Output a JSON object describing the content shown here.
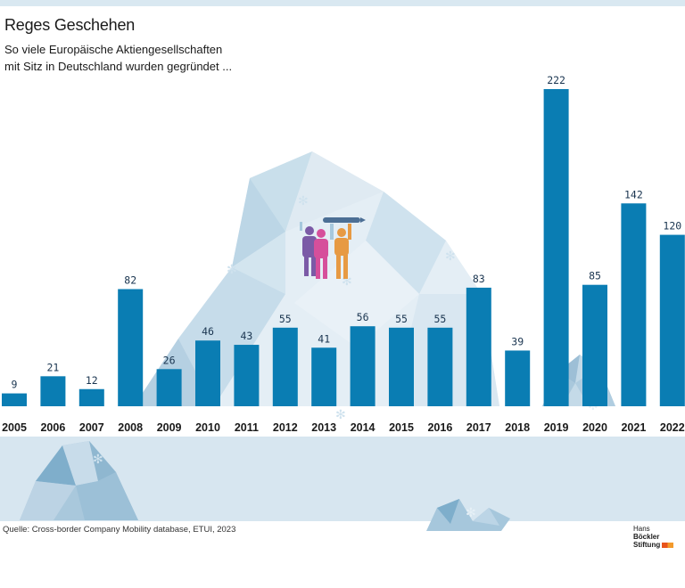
{
  "title": "Reges Geschehen",
  "subtitle_line1": "So viele Europäische Aktiengesellschaften",
  "subtitle_line2": "mit Sitz in Deutschland wurden gegründet ...",
  "source": "Quelle: Cross-border Company Mobility database, ETUI, 2023",
  "logo": {
    "line1": "Hans ",
    "line1_bold": "Böckler",
    "line2": "Stiftung"
  },
  "colors": {
    "bar": "#0a7db3",
    "band": "#d7e6f0",
    "topbar": "#d9e8f1"
  },
  "chart_data": {
    "type": "bar",
    "title": "Reges Geschehen",
    "subtitle": "So viele Europäische Aktiengesellschaften mit Sitz in Deutschland wurden gegründet ...",
    "categories": [
      "2005",
      "2006",
      "2007",
      "2008",
      "2009",
      "2010",
      "2011",
      "2012",
      "2013",
      "2014",
      "2015",
      "2016",
      "2017",
      "2018",
      "2019",
      "2020",
      "2021",
      "2022"
    ],
    "values": [
      9,
      21,
      12,
      82,
      26,
      46,
      43,
      55,
      41,
      56,
      55,
      55,
      83,
      39,
      222,
      85,
      142,
      120
    ],
    "xlabel": "",
    "ylabel": "",
    "ylim": [
      0,
      222
    ],
    "grid": false,
    "legend": "none"
  }
}
